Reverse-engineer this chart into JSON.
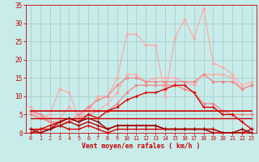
{
  "background_color": "#c8ecea",
  "grid_color": "#a8cece",
  "xlabel": "Vent moyen/en rafales ( km/h )",
  "xlabel_color": "#cc0000",
  "tick_color": "#cc0000",
  "xlim": [
    -0.5,
    23.5
  ],
  "ylim": [
    0,
    35
  ],
  "yticks": [
    0,
    5,
    10,
    15,
    20,
    25,
    30,
    35
  ],
  "xticks": [
    0,
    1,
    2,
    3,
    4,
    5,
    6,
    7,
    8,
    9,
    10,
    11,
    12,
    13,
    14,
    15,
    16,
    17,
    18,
    19,
    20,
    21,
    22,
    23
  ],
  "series": [
    {
      "color": "#ffaaaa",
      "linewidth": 0.9,
      "marker": "o",
      "markersize": 1.8,
      "y": [
        7,
        5,
        4,
        4,
        7,
        5,
        6,
        10,
        10,
        15,
        27,
        27,
        24,
        24,
        10,
        26,
        31,
        26,
        34,
        19,
        18,
        16,
        13,
        14
      ]
    },
    {
      "color": "#ffaaaa",
      "linewidth": 0.9,
      "marker": "o",
      "markersize": 1.8,
      "y": [
        6,
        4,
        5,
        12,
        11,
        4,
        7,
        6,
        8,
        11,
        16,
        16,
        14,
        15,
        15,
        15,
        14,
        13,
        16,
        16,
        16,
        15,
        12,
        13
      ]
    },
    {
      "color": "#ee8888",
      "linewidth": 0.9,
      "marker": "o",
      "markersize": 1.8,
      "y": [
        6,
        5,
        3,
        3,
        3,
        5,
        7,
        9,
        10,
        13,
        15,
        15,
        14,
        14,
        14,
        14,
        14,
        14,
        16,
        14,
        14,
        14,
        12,
        13
      ]
    },
    {
      "color": "#ee8888",
      "linewidth": 0.9,
      "marker": "o",
      "markersize": 1.8,
      "y": [
        5,
        4,
        3,
        2,
        3,
        4,
        5,
        6,
        6,
        8,
        11,
        13,
        13,
        13,
        13,
        13,
        12,
        11,
        8,
        8,
        6,
        5,
        5,
        5
      ]
    },
    {
      "color": "#dd0000",
      "linewidth": 1.0,
      "marker": "+",
      "markersize": 3.5,
      "y": [
        1,
        1,
        2,
        3,
        4,
        3,
        5,
        4,
        6,
        7,
        9,
        10,
        11,
        11,
        12,
        13,
        13,
        11,
        7,
        7,
        5,
        5,
        3,
        1
      ]
    },
    {
      "color": "#cc0000",
      "linewidth": 1.2,
      "marker": null,
      "markersize": 0,
      "y": [
        6,
        6,
        6,
        6,
        6,
        6,
        6,
        6,
        6,
        6,
        6,
        6,
        6,
        6,
        6,
        6,
        6,
        6,
        6,
        6,
        6,
        6,
        6,
        6
      ]
    },
    {
      "color": "#cc0000",
      "linewidth": 1.0,
      "marker": null,
      "markersize": 0,
      "y": [
        4,
        4,
        4,
        4,
        4,
        4,
        4,
        4,
        4,
        4,
        4,
        4,
        4,
        4,
        4,
        4,
        4,
        4,
        4,
        4,
        4,
        4,
        4,
        4
      ]
    },
    {
      "color": "#dd0000",
      "linewidth": 1.0,
      "marker": "+",
      "markersize": 3.0,
      "y": [
        0,
        1,
        1,
        2,
        1,
        1,
        2,
        1,
        0,
        1,
        1,
        1,
        1,
        1,
        1,
        1,
        1,
        1,
        1,
        1,
        0,
        0,
        0,
        0
      ]
    },
    {
      "color": "#bb0000",
      "linewidth": 1.0,
      "marker": "+",
      "markersize": 3.0,
      "y": [
        0,
        0,
        1,
        2,
        3,
        2,
        3,
        2,
        1,
        2,
        2,
        2,
        2,
        2,
        1,
        1,
        1,
        1,
        1,
        1,
        0,
        0,
        0,
        1
      ]
    },
    {
      "color": "#990000",
      "linewidth": 1.0,
      "marker": "+",
      "markersize": 2.5,
      "y": [
        1,
        0,
        1,
        3,
        4,
        3,
        4,
        3,
        1,
        2,
        2,
        2,
        2,
        2,
        1,
        1,
        1,
        1,
        1,
        0,
        0,
        0,
        1,
        0
      ]
    }
  ]
}
